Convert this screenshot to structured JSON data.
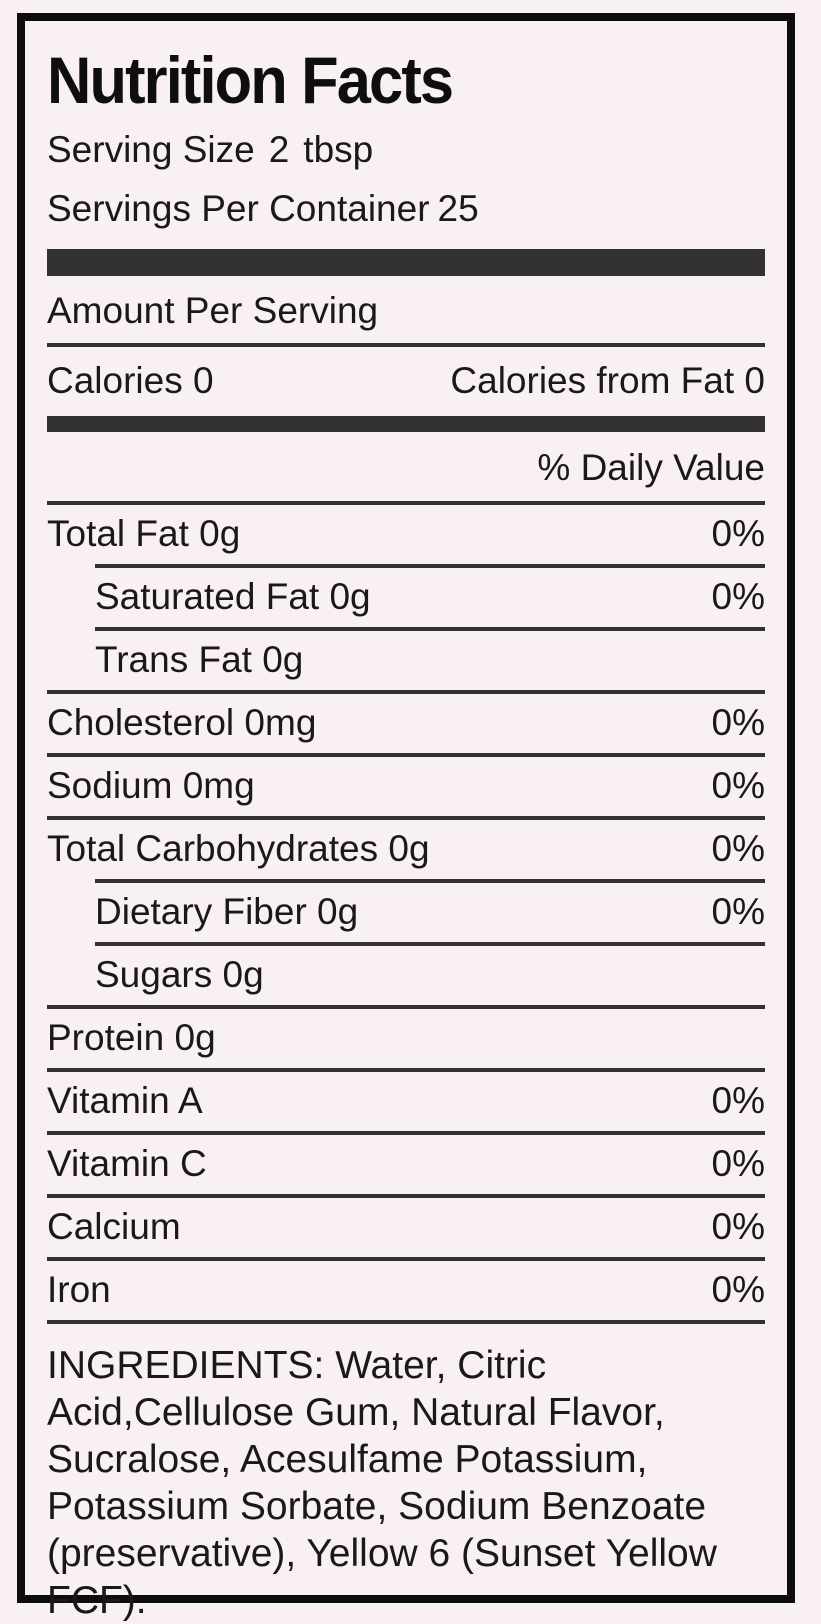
{
  "label": {
    "title": "Nutrition Facts",
    "serving_size": {
      "label": "Serving Size",
      "value": "2",
      "unit": "tbsp"
    },
    "servings_per_container": {
      "label": "Servings Per Container",
      "value": "25"
    },
    "amount_per_serving": "Amount Per Serving",
    "calories": {
      "label": "Calories",
      "value": "0"
    },
    "calories_from_fat": {
      "label": "Calories from Fat",
      "value": "0"
    },
    "daily_value_header": "% Daily Value",
    "nutrients": [
      {
        "name": "Total Fat 0g",
        "dv": "0%",
        "indent": false
      },
      {
        "name": "Saturated Fat 0g",
        "dv": "0%",
        "indent": true
      },
      {
        "name": "Trans Fat 0g",
        "dv": "",
        "indent": true
      },
      {
        "name": "Cholesterol 0mg",
        "dv": "0%",
        "indent": false
      },
      {
        "name": "Sodium 0mg",
        "dv": "0%",
        "indent": false
      },
      {
        "name": "Total Carbohydrates 0g",
        "dv": "0%",
        "indent": false
      },
      {
        "name": "Dietary Fiber 0g",
        "dv": "0%",
        "indent": true
      },
      {
        "name": "Sugars 0g",
        "dv": "",
        "indent": true
      },
      {
        "name": "Protein 0g",
        "dv": "",
        "indent": false
      },
      {
        "name": "Vitamin A",
        "dv": "0%",
        "indent": false
      },
      {
        "name": "Vitamin C",
        "dv": "0%",
        "indent": false
      },
      {
        "name": "Calcium",
        "dv": "0%",
        "indent": false
      },
      {
        "name": "Iron",
        "dv": "0%",
        "indent": false
      }
    ],
    "ingredients": "INGREDIENTS: Water, Citric Acid,Cellulose Gum, Natural Flavor, Sucralose, Acesulfame Potassium, Potassium Sorbate, Sodium Benzoate (preservative), Yellow 6 (Sunset Yellow FCF)."
  },
  "colors": {
    "background": "#f9f1f1",
    "border": "#0e0d0d",
    "bar": "#333132",
    "text": "#1b1819"
  }
}
